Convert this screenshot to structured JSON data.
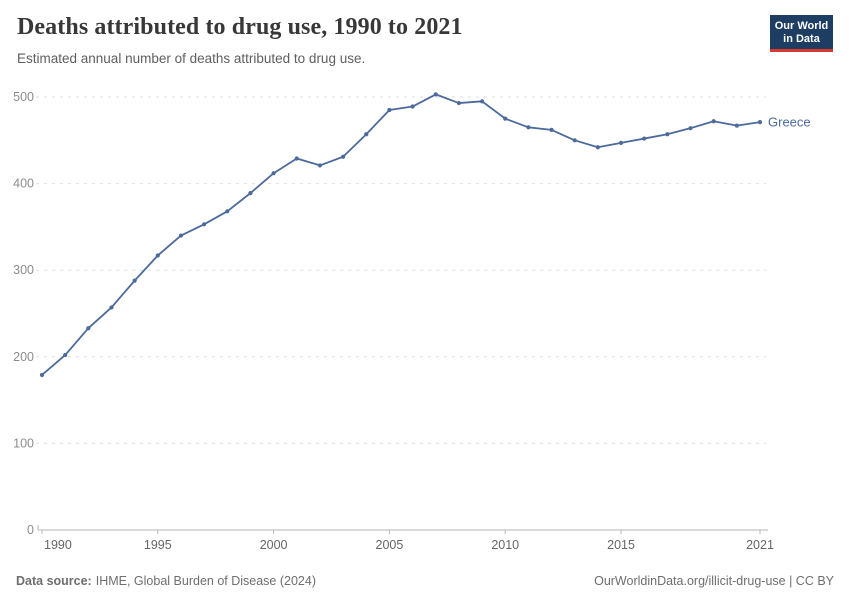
{
  "header": {
    "title": "Deaths attributed to drug use, 1990 to 2021",
    "subtitle": "Estimated annual number of deaths attributed to drug use.",
    "logo": {
      "line1": "Our World",
      "line2": "in Data"
    }
  },
  "chart_data": {
    "type": "line",
    "title": "Deaths attributed to drug use, 1990 to 2021",
    "x": [
      1990,
      1991,
      1992,
      1993,
      1994,
      1995,
      1996,
      1997,
      1998,
      1999,
      2000,
      2001,
      2002,
      2003,
      2004,
      2005,
      2006,
      2007,
      2008,
      2009,
      2010,
      2011,
      2012,
      2013,
      2014,
      2015,
      2016,
      2017,
      2018,
      2019,
      2020,
      2021
    ],
    "series": [
      {
        "name": "Greece",
        "color": "#4c6a9c",
        "values": [
          179,
          202,
          233,
          257,
          288,
          317,
          340,
          353,
          368,
          389,
          412,
          429,
          421,
          431,
          457,
          485,
          489,
          503,
          493,
          495,
          475,
          465,
          462,
          450,
          442,
          447,
          452,
          457,
          464,
          472,
          467,
          471
        ]
      }
    ],
    "xlim": [
      1990,
      2021
    ],
    "ylim": [
      0,
      500
    ],
    "x_ticks": [
      1990,
      1995,
      2000,
      2005,
      2010,
      2015,
      2021
    ],
    "y_ticks": [
      0,
      100,
      200,
      300,
      400,
      500
    ],
    "grid": "horizontal-dashed",
    "legend": "end-of-line-label"
  },
  "footer": {
    "source_label": "Data source:",
    "source_text": "IHME, Global Burden of Disease (2024)",
    "link_text": "OurWorldinData.org/illicit-drug-use | CC BY"
  },
  "colors": {
    "line": "#4c6a9c",
    "logo_bg": "#1d3d63",
    "logo_stripe": "#d7382f",
    "gridline": "#dedede",
    "axis": "#b5b5b5",
    "y_tick_label": "#8c8c8c",
    "x_tick_label": "#666666",
    "title": "#383838",
    "subtitle": "#5f5f5f",
    "footer_text": "#6e6e6e"
  }
}
